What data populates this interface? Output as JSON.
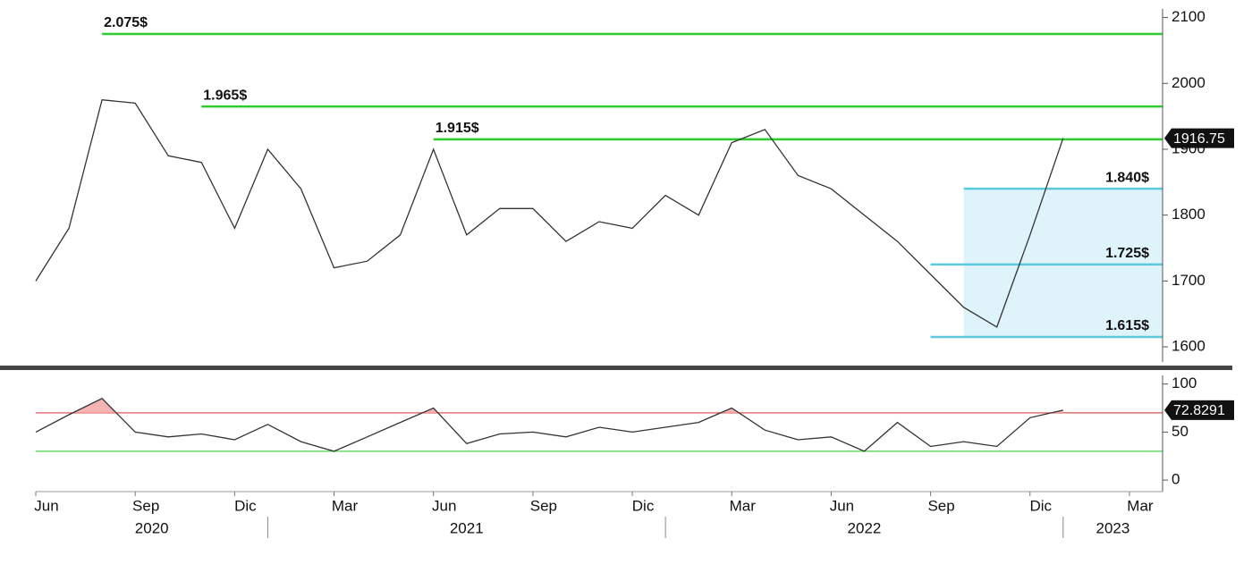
{
  "chart_data": [
    {
      "type": "line",
      "x": [
        "2020-06",
        "2020-07",
        "2020-08",
        "2020-09",
        "2020-10",
        "2020-11",
        "2020-12",
        "2021-01",
        "2021-02",
        "2021-03",
        "2021-04",
        "2021-05",
        "2021-06",
        "2021-07",
        "2021-08",
        "2021-09",
        "2021-10",
        "2021-11",
        "2021-12",
        "2022-01",
        "2022-02",
        "2022-03",
        "2022-04",
        "2022-05",
        "2022-06",
        "2022-07",
        "2022-08",
        "2022-09",
        "2022-10",
        "2022-11",
        "2022-12",
        "2023-01"
      ],
      "series": [
        {
          "color": "#333333",
          "values": [
            1700,
            1780,
            1975,
            1970,
            1890,
            1880,
            1780,
            1900,
            1840,
            1720,
            1730,
            1770,
            1900,
            1770,
            1810,
            1810,
            1760,
            1790,
            1780,
            1830,
            1800,
            1910,
            1930,
            1860,
            1840,
            1800,
            1760,
            1710,
            1660,
            1630,
            1770,
            1916.75
          ]
        }
      ],
      "xlim": [
        "2020-06",
        "2023-04"
      ],
      "xticks": [
        {
          "value": "2020-06",
          "label": "Jun"
        },
        {
          "value": "2020-09",
          "label": "Sep"
        },
        {
          "value": "2020-12",
          "label": "Dic"
        },
        {
          "value": "2021-03",
          "label": "Mar"
        },
        {
          "value": "2021-06",
          "label": "Jun"
        },
        {
          "value": "2021-09",
          "label": "Sep"
        },
        {
          "value": "2021-12",
          "label": "Dic"
        },
        {
          "value": "2022-03",
          "label": "Mar"
        },
        {
          "value": "2022-06",
          "label": "Jun"
        },
        {
          "value": "2022-09",
          "label": "Sep"
        },
        {
          "value": "2022-12",
          "label": "Dic"
        },
        {
          "value": "2023-03",
          "label": "Mar"
        }
      ],
      "years": [
        "2020",
        "2021",
        "2022",
        "2023"
      ],
      "ylim": [
        1577,
        2113
      ],
      "yticks": [
        1600,
        1700,
        1800,
        1900,
        2000,
        2100
      ],
      "levels": [
        {
          "value": 2075,
          "label": "2.075$",
          "start": "2020-08",
          "color": "#2ecc2e"
        },
        {
          "value": 1965,
          "label": "1.965$",
          "start": "2020-11",
          "color": "#2ecc2e"
        },
        {
          "value": 1915,
          "label": "1.915$",
          "start": "2021-06",
          "color": "#2ecc2e"
        },
        {
          "value": 1840,
          "label": "1.840$",
          "start": "2022-10",
          "color": "#5bc8dc"
        },
        {
          "value": 1725,
          "label": "1.725$",
          "start": "2022-09",
          "color": "#5bc8dc"
        },
        {
          "value": 1615,
          "label": "1.615$",
          "start": "2022-09",
          "color": "#5bc8dc"
        }
      ],
      "zone": {
        "from": 1615,
        "to": 1840,
        "start": "2022-10",
        "color": "#dff3fa"
      }
    },
    {
      "type": "line",
      "x": [
        "2020-06",
        "2020-07",
        "2020-08",
        "2020-09",
        "2020-10",
        "2020-11",
        "2020-12",
        "2021-01",
        "2021-02",
        "2021-03",
        "2021-04",
        "2021-05",
        "2021-06",
        "2021-07",
        "2021-08",
        "2021-09",
        "2021-10",
        "2021-11",
        "2021-12",
        "2022-01",
        "2022-02",
        "2022-03",
        "2022-04",
        "2022-05",
        "2022-06",
        "2022-07",
        "2022-08",
        "2022-09",
        "2022-10",
        "2022-11",
        "2022-12",
        "2023-01"
      ],
      "series": [
        {
          "color": "#333333",
          "values": [
            50,
            68,
            85,
            50,
            45,
            48,
            42,
            58,
            40,
            30,
            45,
            60,
            75,
            38,
            48,
            50,
            45,
            55,
            50,
            55,
            60,
            75,
            52,
            42,
            45,
            30,
            60,
            35,
            40,
            35,
            65,
            72.8291
          ]
        }
      ],
      "xlim": [
        "2020-06",
        "2023-04"
      ],
      "ylim": [
        -12,
        109
      ],
      "yticks": [
        0,
        50,
        100
      ],
      "levels": [
        {
          "value": 70,
          "color": "#e05050"
        },
        {
          "value": 30,
          "color": "#4cd04c"
        }
      ],
      "overbought_fill": "#f4b4b4"
    }
  ]
}
